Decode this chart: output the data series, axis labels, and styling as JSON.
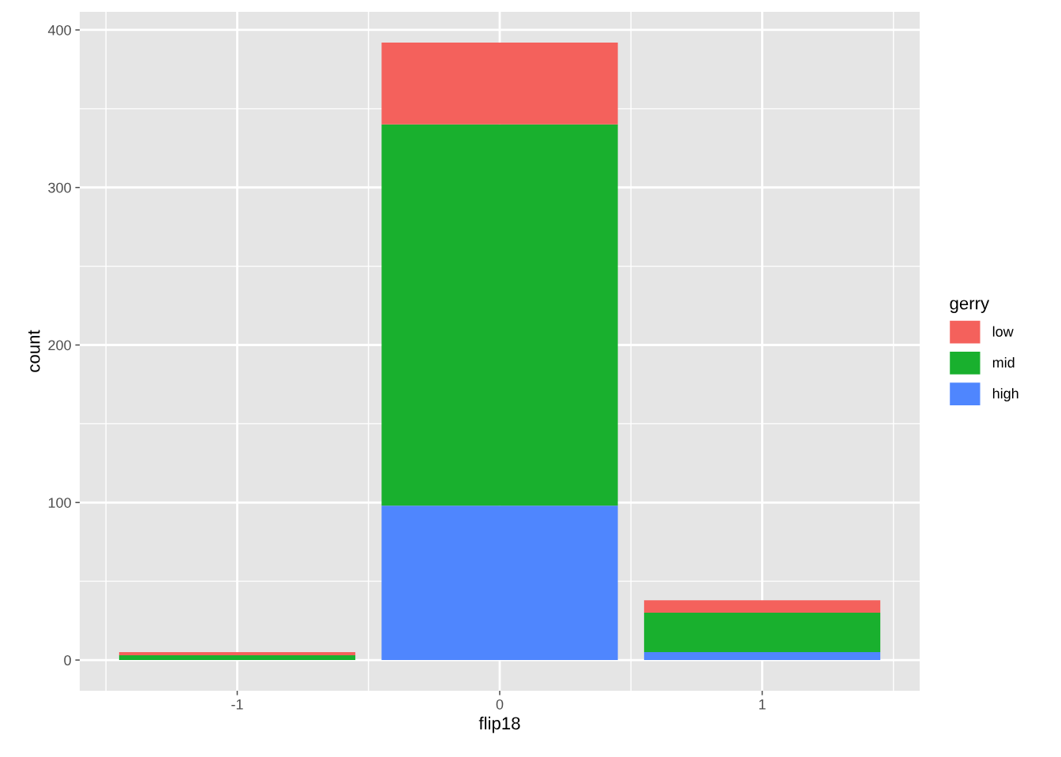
{
  "chart_data": {
    "type": "bar",
    "stacked": true,
    "xlabel": "flip18",
    "ylabel": "count",
    "legend_title": "gerry",
    "legend": "right",
    "x": [
      -1,
      0,
      1
    ],
    "series": [
      {
        "name": "high",
        "color": "#4f86fe",
        "values": [
          0,
          98,
          5
        ]
      },
      {
        "name": "mid",
        "color": "#19b02e",
        "values": [
          3,
          242,
          25
        ]
      },
      {
        "name": "low",
        "color": "#f4615c",
        "values": [
          2,
          52,
          8
        ]
      }
    ],
    "xlim": [
      -1.6,
      1.6
    ],
    "xticks": [
      {
        "value": -1.5,
        "label": null
      },
      -1,
      {
        "value": -0.5,
        "label": null
      },
      0,
      {
        "value": 0.5,
        "label": null
      },
      1,
      {
        "value": 1.5,
        "label": null
      }
    ],
    "ylim": [
      -19.5,
      411.5
    ],
    "yticks": [
      0,
      {
        "value": 50,
        "label": null
      },
      100,
      {
        "value": 150,
        "label": null
      },
      200,
      {
        "value": 250,
        "label": null
      },
      300,
      {
        "value": 350,
        "label": null
      },
      400
    ],
    "grid": true
  }
}
